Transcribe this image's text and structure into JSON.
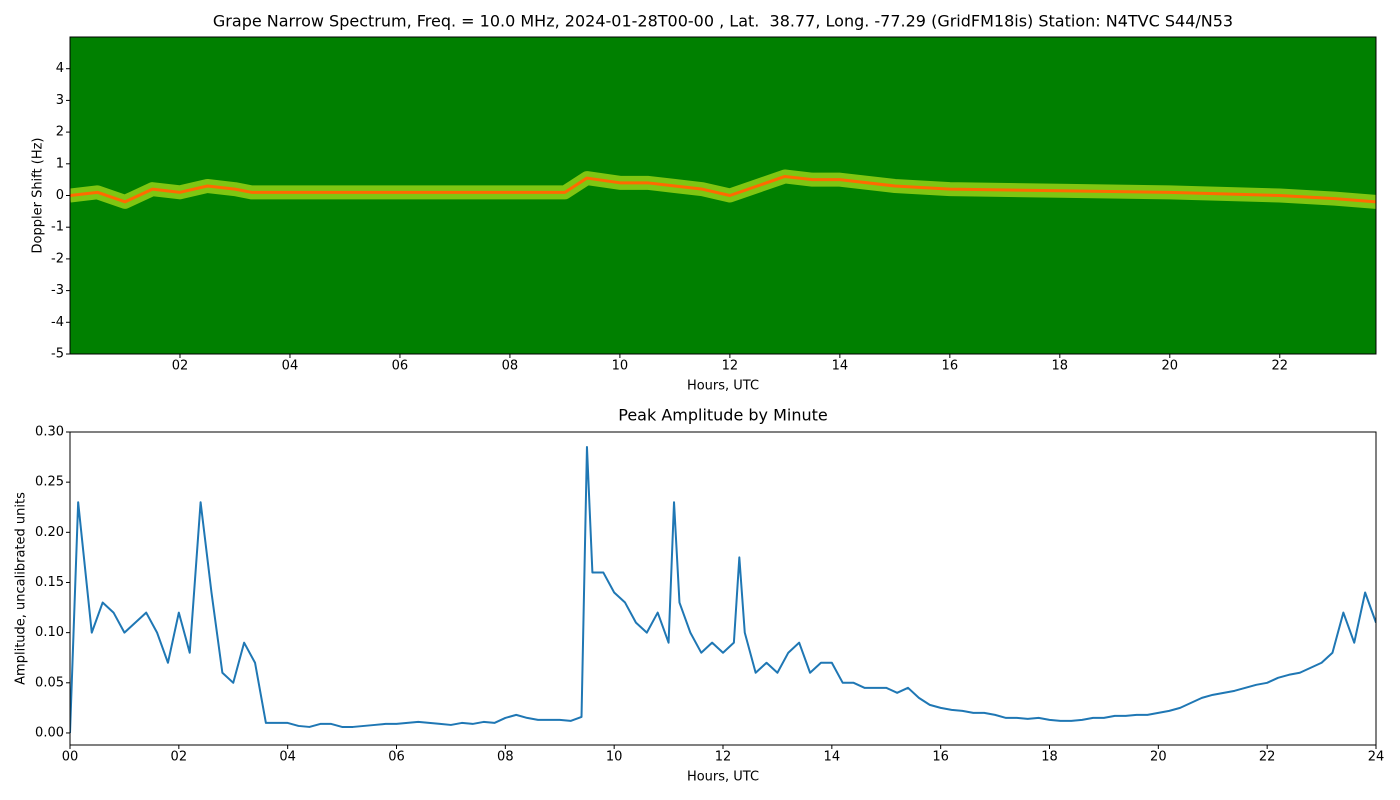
{
  "chart_data": [
    {
      "type": "spectrogram",
      "title": "Grape Narrow Spectrum, Freq. = 10.0 MHz, 2024-01-28T00-00 , Lat.  38.77, Long. -77.29 (GridFM18is) Station: N4TVC S44/N53",
      "xlabel": "Hours, UTC",
      "ylabel": "Doppler Shift (Hz)",
      "background": "#008000",
      "color": "#ff6a00",
      "xlim": [
        0,
        23.75
      ],
      "ylim": [
        -5,
        5
      ],
      "xticks": [
        {
          "value": 2,
          "label": "02"
        },
        {
          "value": 4,
          "label": "04"
        },
        {
          "value": 6,
          "label": "06"
        },
        {
          "value": 8,
          "label": "08"
        },
        {
          "value": 10,
          "label": "10"
        },
        {
          "value": 12,
          "label": "12"
        },
        {
          "value": 14,
          "label": "14"
        },
        {
          "value": 16,
          "label": "16"
        },
        {
          "value": 18,
          "label": "18"
        },
        {
          "value": 20,
          "label": "20"
        },
        {
          "value": 22,
          "label": "22"
        }
      ],
      "yticks": [
        -5,
        -4,
        -3,
        -2,
        -1,
        0,
        1,
        2,
        3,
        4
      ],
      "x": [
        0,
        0.5,
        1.0,
        1.5,
        2.0,
        2.5,
        3.0,
        3.3,
        4,
        5,
        6,
        7,
        8,
        9,
        9.4,
        10,
        10.5,
        11,
        11.5,
        12,
        12.5,
        13,
        13.5,
        14,
        15,
        16,
        18,
        20,
        22,
        23,
        23.75
      ],
      "values": [
        0.0,
        0.1,
        -0.2,
        0.2,
        0.1,
        0.3,
        0.2,
        0.1,
        0.1,
        0.1,
        0.1,
        0.1,
        0.1,
        0.1,
        0.55,
        0.4,
        0.4,
        0.3,
        0.2,
        0.0,
        0.3,
        0.6,
        0.5,
        0.5,
        0.3,
        0.2,
        0.15,
        0.1,
        0.0,
        -0.1,
        -0.2
      ]
    },
    {
      "type": "line",
      "title": "Peak Amplitude by Minute",
      "xlabel": "Hours, UTC",
      "ylabel": "Amplitude, uncalibrated units",
      "color": "#1f77b4",
      "xlim": [
        0,
        24
      ],
      "ylim": [
        -0.012,
        0.3
      ],
      "xticks": [
        {
          "value": 0,
          "label": "00"
        },
        {
          "value": 2,
          "label": "02"
        },
        {
          "value": 4,
          "label": "04"
        },
        {
          "value": 6,
          "label": "06"
        },
        {
          "value": 8,
          "label": "08"
        },
        {
          "value": 10,
          "label": "10"
        },
        {
          "value": 12,
          "label": "12"
        },
        {
          "value": 14,
          "label": "14"
        },
        {
          "value": 16,
          "label": "16"
        },
        {
          "value": 18,
          "label": "18"
        },
        {
          "value": 20,
          "label": "20"
        },
        {
          "value": 22,
          "label": "22"
        },
        {
          "value": 24,
          "label": "24"
        }
      ],
      "yticks": [
        {
          "value": 0,
          "label": "0.00"
        },
        0.05,
        {
          "value": 0.1,
          "label": "0.10"
        },
        0.15,
        {
          "value": 0.2,
          "label": "0.20"
        },
        0.25,
        {
          "value": 0.3,
          "label": "0.30"
        }
      ],
      "x": [
        0,
        0.15,
        0.4,
        0.6,
        0.8,
        1.0,
        1.2,
        1.4,
        1.6,
        1.8,
        2.0,
        2.2,
        2.4,
        2.6,
        2.8,
        3.0,
        3.2,
        3.4,
        3.6,
        3.8,
        4.0,
        4.2,
        4.4,
        4.6,
        4.8,
        5.0,
        5.2,
        5.4,
        5.6,
        5.8,
        6.0,
        6.2,
        6.4,
        6.6,
        6.8,
        7.0,
        7.2,
        7.4,
        7.6,
        7.8,
        8.0,
        8.2,
        8.4,
        8.6,
        8.8,
        9.0,
        9.2,
        9.4,
        9.5,
        9.6,
        9.8,
        10.0,
        10.2,
        10.4,
        10.6,
        10.8,
        11.0,
        11.1,
        11.2,
        11.4,
        11.6,
        11.8,
        12.0,
        12.2,
        12.3,
        12.4,
        12.6,
        12.8,
        13.0,
        13.2,
        13.4,
        13.6,
        13.8,
        14.0,
        14.2,
        14.4,
        14.6,
        14.8,
        15.0,
        15.2,
        15.4,
        15.6,
        15.8,
        16.0,
        16.2,
        16.4,
        16.6,
        16.8,
        17.0,
        17.2,
        17.4,
        17.6,
        17.8,
        18.0,
        18.2,
        18.4,
        18.6,
        18.8,
        19.0,
        19.2,
        19.4,
        19.6,
        19.8,
        20.0,
        20.2,
        20.4,
        20.6,
        20.8,
        21.0,
        21.2,
        21.4,
        21.6,
        21.8,
        22.0,
        22.2,
        22.4,
        22.6,
        22.8,
        23.0,
        23.2,
        23.4,
        23.6,
        23.8,
        24.0
      ],
      "values": [
        0.0,
        0.23,
        0.1,
        0.13,
        0.12,
        0.1,
        0.11,
        0.12,
        0.1,
        0.07,
        0.12,
        0.08,
        0.23,
        0.14,
        0.06,
        0.05,
        0.09,
        0.07,
        0.01,
        0.01,
        0.01,
        0.007,
        0.006,
        0.009,
        0.009,
        0.006,
        0.006,
        0.007,
        0.008,
        0.009,
        0.009,
        0.01,
        0.011,
        0.01,
        0.009,
        0.008,
        0.01,
        0.009,
        0.011,
        0.01,
        0.015,
        0.018,
        0.015,
        0.013,
        0.013,
        0.013,
        0.012,
        0.016,
        0.285,
        0.16,
        0.16,
        0.14,
        0.13,
        0.11,
        0.1,
        0.12,
        0.09,
        0.23,
        0.13,
        0.1,
        0.08,
        0.09,
        0.08,
        0.09,
        0.175,
        0.1,
        0.06,
        0.07,
        0.06,
        0.08,
        0.09,
        0.06,
        0.07,
        0.07,
        0.05,
        0.05,
        0.045,
        0.045,
        0.045,
        0.04,
        0.045,
        0.035,
        0.028,
        0.025,
        0.023,
        0.022,
        0.02,
        0.02,
        0.018,
        0.015,
        0.015,
        0.014,
        0.015,
        0.013,
        0.012,
        0.012,
        0.013,
        0.015,
        0.015,
        0.017,
        0.017,
        0.018,
        0.018,
        0.02,
        0.022,
        0.025,
        0.03,
        0.035,
        0.038,
        0.04,
        0.042,
        0.045,
        0.048,
        0.05,
        0.055,
        0.058,
        0.06,
        0.065,
        0.07,
        0.08,
        0.12,
        0.09,
        0.14,
        0.11
      ]
    }
  ]
}
